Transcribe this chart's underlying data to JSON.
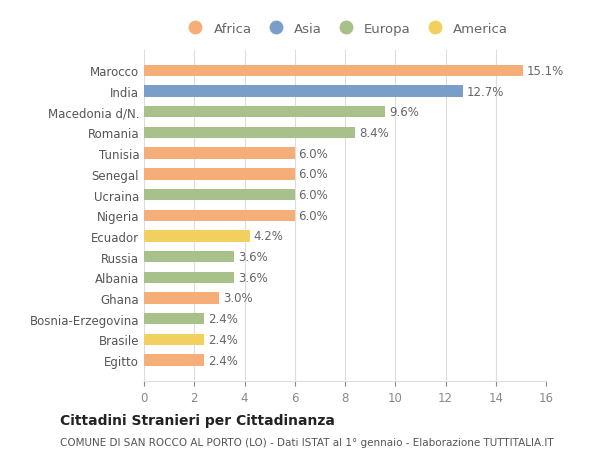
{
  "countries": [
    "Marocco",
    "India",
    "Macedonia d/N.",
    "Romania",
    "Tunisia",
    "Senegal",
    "Ucraina",
    "Nigeria",
    "Ecuador",
    "Russia",
    "Albania",
    "Ghana",
    "Bosnia-Erzegovina",
    "Brasile",
    "Egitto"
  ],
  "values": [
    15.1,
    12.7,
    9.6,
    8.4,
    6.0,
    6.0,
    6.0,
    6.0,
    4.2,
    3.6,
    3.6,
    3.0,
    2.4,
    2.4,
    2.4
  ],
  "continents": [
    "Africa",
    "Asia",
    "Europa",
    "Europa",
    "Africa",
    "Africa",
    "Europa",
    "Africa",
    "America",
    "Europa",
    "Europa",
    "Africa",
    "Europa",
    "America",
    "Africa"
  ],
  "continent_colors": {
    "Africa": "#F5AE78",
    "Asia": "#7B9EC8",
    "Europa": "#A8C08A",
    "America": "#F2D060"
  },
  "legend_order": [
    "Africa",
    "Asia",
    "Europa",
    "America"
  ],
  "xlim": [
    0,
    16
  ],
  "xticks": [
    0,
    2,
    4,
    6,
    8,
    10,
    12,
    14,
    16
  ],
  "title": "Cittadini Stranieri per Cittadinanza",
  "subtitle": "COMUNE DI SAN ROCCO AL PORTO (LO) - Dati ISTAT al 1° gennaio - Elaborazione TUTTITALIA.IT",
  "background_color": "#ffffff",
  "grid_color": "#dddddd",
  "bar_height": 0.55,
  "title_fontsize": 10,
  "subtitle_fontsize": 7.5,
  "tick_fontsize": 8.5,
  "label_fontsize": 8.5,
  "legend_fontsize": 9.5
}
